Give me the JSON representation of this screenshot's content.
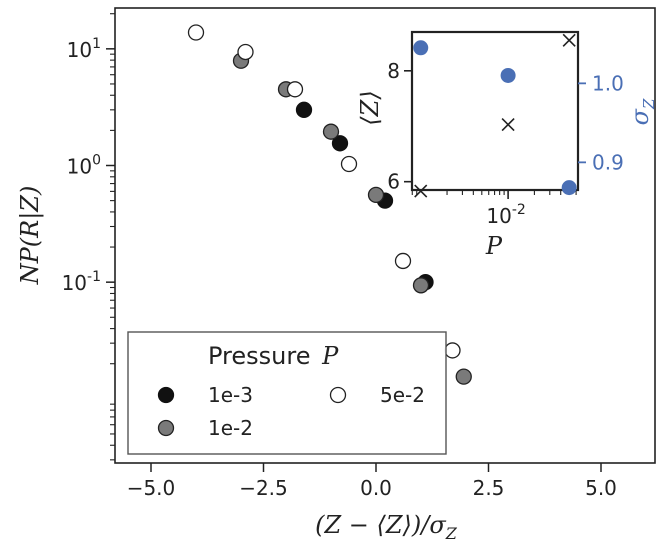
{
  "chart_data": [
    {
      "type": "scatter",
      "title": "",
      "xlabel": "(Z − ⟨Z⟩)/σ",
      "xlabel_sub": "Z",
      "ylabel": "NP(R|Z)",
      "xlim": [
        -5.8,
        6.2
      ],
      "ylim_log10": [
        -2.55,
        1.35
      ],
      "yscale": "log",
      "x_ticks": [
        -5.0,
        -2.5,
        0.0,
        2.5,
        5.0
      ],
      "x_tick_labels": [
        "−5.0",
        "−2.5",
        "0.0",
        "2.5",
        "5.0"
      ],
      "y_ticks": [
        {
          "value": 10,
          "base": "10",
          "exp": "1"
        },
        {
          "value": 1,
          "base": "10",
          "exp": "0"
        },
        {
          "value": 0.1,
          "base": "10",
          "exp": "-1"
        }
      ],
      "legend": {
        "title": "Pressure",
        "title_symbol": "P",
        "placement": "lower-left"
      },
      "series": [
        {
          "name": "1e-3",
          "marker_color": "#111111",
          "edge_color": "#111111",
          "points": [
            [
              -1.6,
              3.0
            ],
            [
              -0.8,
              1.55
            ],
            [
              0.2,
              0.5
            ],
            [
              1.1,
              0.1
            ]
          ]
        },
        {
          "name": "1e-2",
          "marker_color": "#7a7a7a",
          "edge_color": "#222222",
          "points": [
            [
              -3.0,
              7.9
            ],
            [
              -2.0,
              4.5
            ],
            [
              -1.0,
              1.95
            ],
            [
              0.0,
              0.56
            ],
            [
              1.0,
              0.094
            ],
            [
              1.95,
              0.0155
            ]
          ]
        },
        {
          "name": "5e-2",
          "marker_color": "#ffffff",
          "edge_color": "#222222",
          "points": [
            [
              -4.0,
              13.8
            ],
            [
              -2.9,
              9.4
            ],
            [
              -1.8,
              4.5
            ],
            [
              -0.6,
              1.03
            ],
            [
              0.6,
              0.152
            ],
            [
              1.7,
              0.026
            ]
          ]
        }
      ]
    },
    {
      "type": "scatter",
      "title": "",
      "xlabel": "P",
      "ylabel": "⟨Z⟩",
      "y2label": "σ",
      "y2label_sub": "Z",
      "xscale": "log",
      "xlim_log10": [
        -3.1,
        -1.2
      ],
      "ylim": [
        5.85,
        8.7
      ],
      "y2lim": [
        0.865,
        1.065
      ],
      "x_ticks": [
        {
          "value": 0.01,
          "base": "10",
          "exp": "-2"
        }
      ],
      "y_ticks": [
        6,
        8
      ],
      "y2_ticks": [
        0.9,
        1.0
      ],
      "y2_tick_labels": [
        "0.9",
        "1.0"
      ],
      "y2_color": "#4a6fb5",
      "series": [
        {
          "name": "",
          "marker": "x",
          "axis": "left",
          "color": "#222222",
          "points": [
            [
              0.001,
              5.83
            ],
            [
              0.01,
              7.03
            ],
            [
              0.05,
              8.55
            ]
          ]
        },
        {
          "name": "",
          "marker": "circle",
          "axis": "right",
          "color": "#4a6fb5",
          "points": [
            [
              0.001,
              1.045
            ],
            [
              0.01,
              1.01
            ],
            [
              0.05,
              0.868
            ]
          ]
        }
      ]
    }
  ]
}
